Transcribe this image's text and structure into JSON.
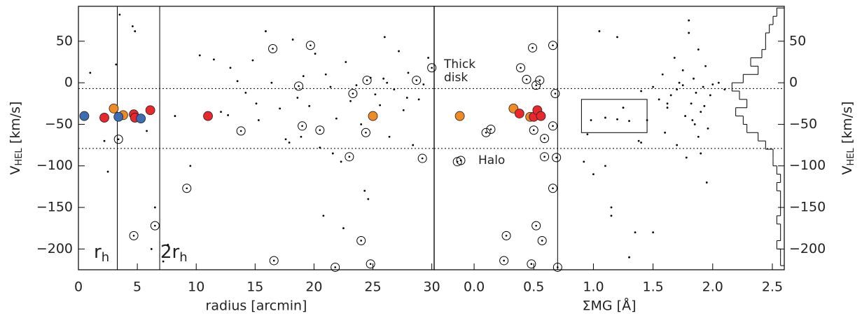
{
  "chart_data": [
    {
      "type": "scatter",
      "xlabel": "radius [arcmin]",
      "ylabel": {
        "main": "V",
        "sub": "HEL",
        "unit": " [km/s]"
      },
      "xlim": [
        0,
        30.2
      ],
      "ylim": [
        -225,
        92
      ],
      "xticks": [
        0,
        5,
        10,
        15,
        20,
        25,
        30
      ],
      "yticks": [
        {
          "value": 50,
          "label": "50"
        },
        {
          "value": 0,
          "label": "0"
        },
        {
          "value": -50,
          "label": "−50"
        },
        {
          "value": -100,
          "label": "−100"
        },
        {
          "value": -150,
          "label": "−150"
        },
        {
          "value": -200,
          "label": "−200"
        }
      ],
      "vlines": [
        3.3,
        6.9
      ],
      "hlines": [
        -7,
        -79
      ],
      "annotations": [
        {
          "main": "r",
          "sub": "h"
        },
        {
          "main": "2r",
          "sub": "h"
        }
      ],
      "series": [
        {
          "marker": "dot",
          "color": "#000000",
          "x": [
            1,
            2.5,
            3.2,
            4.6,
            4.8,
            5.8,
            6.2,
            6.5,
            7.2,
            8.2,
            9.5,
            10.3,
            11.5,
            12.1,
            12.9,
            13.5,
            14.2,
            14.8,
            15.3,
            15.9,
            16.4,
            17.1,
            17.6,
            18.2,
            18.6,
            19.1,
            19.6,
            20.1,
            20.5,
            21,
            21.4,
            21.9,
            22.3,
            22.7,
            23.1,
            23.6,
            24,
            24.3,
            24.8,
            25.2,
            25.6,
            26,
            26.4,
            26.8,
            27.2,
            27.6,
            28,
            28.4,
            28.9,
            29.3,
            29.7,
            15.1,
            17.9,
            20.8,
            22.5,
            24.6,
            26.2,
            27.9,
            12.7,
            21.6,
            18.9,
            25.9,
            3.5,
            2.2,
            7.6
          ],
          "values": [
            12,
            -107,
            22,
            68,
            62,
            -58,
            -200,
            -150,
            -215,
            -40,
            -100,
            33,
            28,
            -35,
            18,
            2,
            -12,
            27,
            -45,
            62,
            0,
            -31,
            -68,
            52,
            -18,
            8,
            -28,
            35,
            -78,
            10,
            -5,
            -43,
            -95,
            25,
            -22,
            -3,
            -50,
            -130,
            6,
            -14,
            -27,
            55,
            -65,
            -8,
            38,
            -33,
            12,
            -75,
            -20,
            -2,
            30,
            -25,
            -72,
            -160,
            -175,
            -140,
            0,
            -18,
            -39,
            -85,
            -65,
            5,
            82,
            -70,
            -195
          ]
        },
        {
          "marker": "circled",
          "color": "#000000",
          "x": [
            16.5,
            19.7,
            18.7,
            23.3,
            24.5,
            28.7,
            30,
            13.8,
            19,
            20.5,
            24.4,
            23,
            29.2,
            3.4,
            9.2,
            6.5,
            4.7,
            24,
            16.6,
            21.8,
            24.8
          ],
          "values": [
            41,
            45,
            -4,
            -13,
            3,
            3,
            18,
            -58,
            -52,
            -57,
            -60,
            -89,
            -91,
            -68,
            -127,
            -172,
            -184,
            -190,
            -214,
            -222,
            -218
          ]
        },
        {
          "marker": "filled",
          "color": "#e8282d",
          "x": [
            2.2,
            4.7,
            6.1,
            11,
            4.8
          ],
          "values": [
            -42,
            -38,
            -33,
            -40,
            -42
          ]
        },
        {
          "marker": "filled",
          "color": "#f08a24",
          "x": [
            3,
            3.8,
            25
          ],
          "values": [
            -31,
            -39,
            -40
          ]
        },
        {
          "marker": "filled",
          "color": "#3c6db4",
          "x": [
            0.5,
            3.4,
            5.3
          ],
          "values": [
            -40,
            -41,
            -43
          ]
        }
      ]
    },
    {
      "type": "scatter",
      "xlabel": "ΣMG [Å]",
      "xlim": [
        -0.335,
        2.6
      ],
      "ylim": [
        -225,
        92
      ],
      "xticks": [
        {
          "value": 0,
          "label": "0.0"
        },
        {
          "value": 0.5,
          "label": "0.5"
        },
        {
          "value": 1,
          "label": "1.0"
        },
        {
          "value": 1.5,
          "label": "1.5"
        },
        {
          "value": 2,
          "label": "2.0"
        },
        {
          "value": 2.5,
          "label": "2.5"
        }
      ],
      "vlines": [
        0.7
      ],
      "hlines": [
        -7,
        -79
      ],
      "box": {
        "x": [
          0.9,
          1.45
        ],
        "y": [
          -60,
          -20
        ]
      },
      "annotations": [
        "Thick",
        "disk",
        "Halo"
      ],
      "series": [
        {
          "marker": "dot",
          "color": "#000000",
          "x": [
            0.92,
            0.98,
            1.05,
            1.1,
            1.15,
            1.2,
            1.25,
            1.3,
            1.35,
            1.4,
            1.45,
            1.5,
            1.55,
            1.58,
            1.62,
            1.65,
            1.68,
            1.7,
            1.72,
            1.75,
            1.77,
            1.8,
            1.82,
            1.84,
            1.86,
            1.88,
            1.9,
            1.92,
            1.94,
            1.96,
            1.98,
            2.0,
            2.05,
            1.6,
            1.7,
            1.78,
            1.85,
            1.9,
            1.95,
            1.2,
            1.3,
            1.0,
            1.1,
            1.4,
            1.5,
            1.8,
            1.88,
            1.93,
            2.1,
            0.95,
            1.15,
            1.38,
            1.75,
            1.62,
            1.83
          ],
          "values": [
            -95,
            -45,
            62,
            -42,
            -150,
            -44,
            -30,
            -46,
            -180,
            -10,
            -45,
            -5,
            -20,
            10,
            -30,
            -15,
            30,
            -8,
            0,
            15,
            -40,
            60,
            -25,
            5,
            -12,
            40,
            -35,
            -5,
            20,
            -55,
            -15,
            -2,
            0,
            -60,
            -75,
            -90,
            -50,
            -85,
            -120,
            55,
            -210,
            -110,
            -100,
            -72,
            -180,
            75,
            -65,
            -28,
            -8,
            -62,
            -160,
            -70,
            -3,
            -25,
            -45
          ]
        },
        {
          "marker": "circled",
          "color": "#000000",
          "x": [
            -0.14,
            0.1,
            0.14,
            0.39,
            0.44,
            0.49,
            0.52,
            0.55,
            0.66,
            0.68,
            0.66,
            0.5,
            0.59,
            0.59,
            0.69,
            0.66,
            0.52,
            0.27,
            0.57,
            0.25,
            0.48,
            0.7
          ],
          "values": [
            -95,
            -60,
            -56,
            18,
            4,
            42,
            -3,
            3,
            45,
            -13,
            -52,
            -57,
            -67,
            -89,
            -90,
            -127,
            -172,
            -184,
            -190,
            -214,
            -218,
            -222
          ]
        },
        {
          "marker": "filled",
          "color": "#f08a24",
          "x": [
            -0.12,
            0.33,
            0.47
          ],
          "values": [
            -40,
            -31,
            -41
          ]
        },
        {
          "marker": "filled",
          "color": "#e8282d",
          "x": [
            0.38,
            0.5,
            0.53,
            0.56
          ],
          "values": [
            -37,
            -41,
            -33,
            -40
          ]
        }
      ]
    },
    {
      "type": "histogram",
      "ylabel": {
        "main": "V",
        "sub": "HEL",
        "unit": " [km/s]"
      },
      "xlim": [
        0,
        15
      ],
      "ylim": [
        -225,
        92
      ],
      "yticks": [
        {
          "value": 50,
          "label": "50"
        },
        {
          "value": 0,
          "label": "0"
        },
        {
          "value": -50,
          "label": "−50"
        },
        {
          "value": -100,
          "label": "−100"
        },
        {
          "value": -150,
          "label": "−150"
        },
        {
          "value": -200,
          "label": "−200"
        }
      ],
      "bins": [
        -220,
        -210,
        -200,
        -190,
        -180,
        -170,
        -160,
        -150,
        -140,
        -130,
        -120,
        -110,
        -100,
        -90,
        -80,
        -70,
        -60,
        -50,
        -40,
        -30,
        -20,
        -10,
        0,
        10,
        20,
        30,
        40,
        50,
        60,
        70,
        80,
        90
      ],
      "values": [
        1,
        1,
        2,
        1,
        1,
        2,
        1,
        1,
        1,
        2,
        1,
        2,
        3,
        3,
        5,
        7,
        10,
        11,
        13,
        10,
        12,
        14,
        11,
        7,
        9,
        6,
        5,
        5,
        4,
        3,
        2
      ]
    }
  ]
}
